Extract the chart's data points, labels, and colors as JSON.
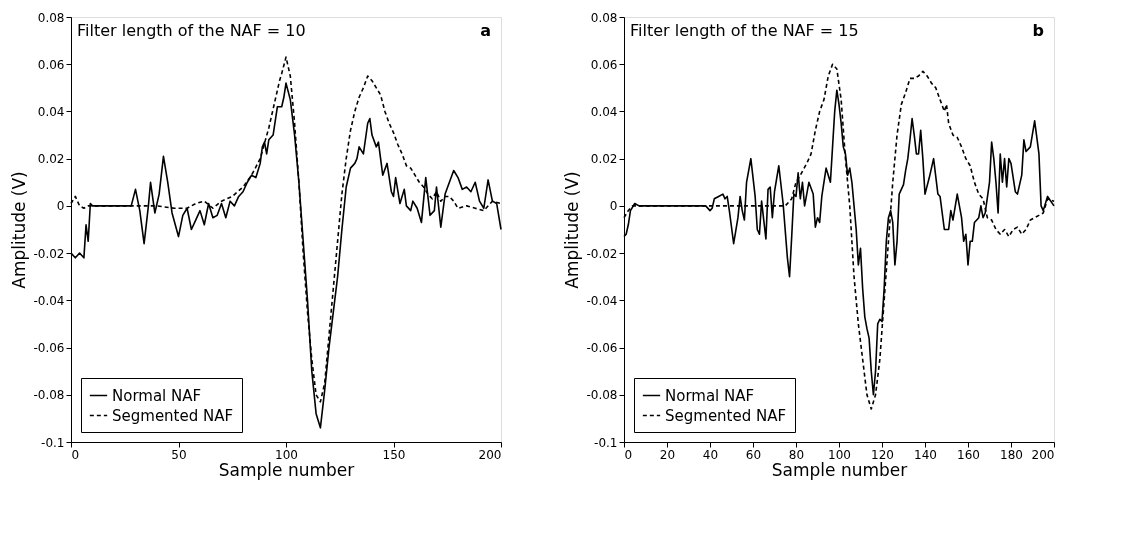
{
  "chart_data": [
    {
      "type": "line",
      "title": "Filter length of the NAF = 10",
      "xlabel": "Sample number",
      "ylabel": "Amplitude (V)",
      "xlim": [
        0,
        200
      ],
      "xticks": [
        0,
        50,
        100,
        150,
        200
      ],
      "ylim": [
        -0.1,
        0.08
      ],
      "yticks": [
        -0.1,
        -0.08,
        -0.06,
        -0.04,
        -0.02,
        0,
        0.02,
        0.04,
        0.06,
        0.08
      ],
      "grid": false,
      "legend": "bottom left",
      "annotations": [
        "a"
      ],
      "series": [
        {
          "name": "Normal NAF",
          "color": "#000000",
          "line_style": "solid",
          "x": [
            0,
            2,
            4,
            6,
            7,
            8,
            9,
            10,
            28,
            30,
            32,
            34,
            36,
            37,
            39,
            41,
            43,
            45,
            47,
            50,
            52,
            54,
            56,
            58,
            60,
            62,
            64,
            66,
            68,
            70,
            72,
            74,
            76,
            78,
            80,
            82,
            84,
            86,
            88,
            89,
            90,
            91,
            92,
            94,
            96,
            98,
            99,
            100,
            102,
            104,
            106,
            108,
            110,
            112,
            114,
            116,
            118,
            120,
            122,
            124,
            126,
            128,
            130,
            132,
            133,
            134,
            136,
            138,
            139,
            140,
            142,
            143,
            144,
            145,
            147,
            149,
            150,
            151,
            153,
            155,
            156,
            158,
            159,
            161,
            163,
            165,
            167,
            169,
            170,
            172,
            174,
            176,
            178,
            180,
            182,
            184,
            186,
            188,
            190,
            192,
            194,
            196,
            198,
            200
          ],
          "values": [
            -0.02,
            -0.022,
            -0.02,
            -0.022,
            -0.008,
            -0.015,
            0.001,
            0,
            0,
            0.007,
            -0.002,
            -0.016,
            0,
            0.01,
            -0.003,
            0.005,
            0.021,
            0.01,
            -0.003,
            -0.013,
            -0.004,
            -0.001,
            -0.01,
            -0.006,
            -0.002,
            -0.008,
            0.001,
            -0.005,
            -0.004,
            0.001,
            -0.005,
            0.002,
            0,
            0.004,
            0.006,
            0.01,
            0.013,
            0.012,
            0.018,
            0.025,
            0.027,
            0.022,
            0.028,
            0.03,
            0.042,
            0.042,
            0.046,
            0.052,
            0.045,
            0.03,
            0.01,
            -0.015,
            -0.04,
            -0.07,
            -0.088,
            -0.094,
            -0.078,
            -0.06,
            -0.045,
            -0.03,
            -0.01,
            0.008,
            0.016,
            0.018,
            0.02,
            0.025,
            0.022,
            0.035,
            0.037,
            0.03,
            0.025,
            0.027,
            0.02,
            0.013,
            0.018,
            0.006,
            0.004,
            0.012,
            0.001,
            0.007,
            0,
            -0.002,
            0.002,
            -0.001,
            -0.007,
            0.012,
            -0.004,
            -0.002,
            0.008,
            -0.009,
            0.005,
            0.01,
            0.015,
            0.012,
            0.007,
            0.008,
            0.006,
            0.01,
            0.002,
            -0.001,
            0.011,
            0.002,
            0.001,
            -0.01
          ]
        },
        {
          "name": "Segmented NAF",
          "color": "#000000",
          "line_style": "dashed",
          "x": [
            0,
            2,
            4,
            6,
            8,
            10,
            30,
            40,
            48,
            54,
            58,
            62,
            66,
            70,
            75,
            80,
            84,
            88,
            92,
            95,
            97,
            98,
            100,
            102,
            104,
            106,
            108,
            110,
            112,
            114,
            116,
            118,
            120,
            122,
            124,
            126,
            128,
            130,
            132,
            134,
            136,
            138,
            140,
            142,
            144,
            146,
            148,
            150,
            152,
            154,
            156,
            158,
            160,
            162,
            164,
            166,
            168,
            170,
            172,
            174,
            176,
            178,
            180,
            184,
            188,
            192,
            196,
            200
          ],
          "values": [
            0.001,
            0.004,
            0,
            -0.001,
            0,
            0,
            0,
            0,
            -0.001,
            -0.001,
            0.001,
            0.002,
            -0.001,
            0.002,
            0.004,
            0.008,
            0.013,
            0.02,
            0.033,
            0.045,
            0.053,
            0.056,
            0.063,
            0.055,
            0.035,
            0.01,
            -0.02,
            -0.045,
            -0.065,
            -0.08,
            -0.083,
            -0.075,
            -0.055,
            -0.035,
            -0.015,
            0.005,
            0.02,
            0.032,
            0.04,
            0.046,
            0.05,
            0.055,
            0.053,
            0.05,
            0.047,
            0.04,
            0.035,
            0.031,
            0.026,
            0.022,
            0.017,
            0.016,
            0.013,
            0.01,
            0.008,
            0.005,
            0.003,
            0.006,
            0.002,
            0.004,
            0.004,
            0.002,
            -0.001,
            0,
            -0.001,
            -0.002,
            0.002,
            0.001
          ]
        }
      ]
    },
    {
      "type": "line",
      "title": "Filter length of the NAF = 15",
      "xlabel": "Sample number",
      "ylabel": "Amplitude (V)",
      "xlim": [
        0,
        200
      ],
      "xticks": [
        0,
        20,
        40,
        60,
        80,
        100,
        120,
        140,
        160,
        180,
        200
      ],
      "ylim": [
        -0.1,
        0.08
      ],
      "yticks": [
        -0.1,
        -0.08,
        -0.06,
        -0.04,
        -0.02,
        0,
        0.02,
        0.04,
        0.06,
        0.08
      ],
      "grid": false,
      "legend": "bottom left",
      "annotations": [
        "b"
      ],
      "series": [
        {
          "name": "Normal NAF",
          "color": "#000000",
          "line_style": "solid",
          "x": [
            0,
            1,
            2,
            3,
            5,
            7,
            38,
            40,
            41,
            42,
            44,
            46,
            47,
            48,
            49,
            51,
            53,
            54,
            55,
            56,
            57,
            59,
            61,
            62,
            63,
            64,
            65,
            66,
            67,
            68,
            69,
            70,
            72,
            74,
            76,
            77,
            78,
            79,
            80,
            81,
            82,
            83,
            84,
            86,
            88,
            89,
            90,
            91,
            92,
            94,
            95,
            96,
            97,
            98,
            99,
            100,
            101,
            102,
            103,
            104,
            105,
            106,
            107,
            108,
            109,
            110,
            111,
            112,
            113,
            114,
            115,
            116,
            117,
            118,
            119,
            120,
            121,
            122,
            123,
            124,
            125,
            126,
            127,
            128,
            130,
            131,
            132,
            133,
            134,
            135,
            136,
            137,
            138,
            139,
            140,
            142,
            144,
            146,
            147,
            149,
            151,
            152,
            153,
            155,
            157,
            158,
            159,
            160,
            161,
            162,
            163,
            165,
            166,
            167,
            168,
            170,
            171,
            172,
            173,
            174,
            175,
            176,
            177,
            178,
            179,
            180,
            182,
            183,
            185,
            186,
            187,
            189,
            191,
            193,
            194,
            195,
            197,
            200
          ],
          "values": [
            -0.013,
            -0.012,
            -0.008,
            -0.002,
            0.001,
            0,
            0,
            -0.002,
            -0.001,
            0.003,
            0.004,
            0.005,
            0.003,
            0.004,
            -0.002,
            -0.016,
            -0.005,
            0.004,
            -0.002,
            -0.006,
            0.01,
            0.02,
            0.004,
            -0.01,
            -0.012,
            0.002,
            -0.006,
            -0.014,
            0.007,
            0.008,
            -0.005,
            0.006,
            0.017,
            0.001,
            -0.022,
            -0.03,
            -0.013,
            0.005,
            0.004,
            0.014,
            0.003,
            0.01,
            0,
            0.01,
            0.005,
            -0.009,
            -0.005,
            -0.007,
            0.004,
            0.016,
            0.013,
            0.01,
            0.025,
            0.04,
            0.049,
            0.043,
            0.035,
            0.025,
            0.022,
            0.013,
            0.016,
            0.01,
            0,
            -0.01,
            -0.025,
            -0.018,
            -0.035,
            -0.047,
            -0.052,
            -0.056,
            -0.07,
            -0.08,
            -0.07,
            -0.05,
            -0.048,
            -0.049,
            -0.035,
            -0.015,
            -0.005,
            -0.002,
            -0.007,
            -0.025,
            -0.015,
            0.005,
            0.009,
            0.015,
            0.02,
            0.028,
            0.037,
            0.03,
            0.022,
            0.022,
            0.032,
            0.02,
            0.005,
            0.012,
            0.02,
            0.005,
            0.004,
            -0.01,
            -0.01,
            -0.002,
            -0.006,
            0.005,
            -0.005,
            -0.015,
            -0.012,
            -0.025,
            -0.015,
            -0.015,
            -0.007,
            -0.005,
            0,
            -0.005,
            -0.003,
            0.01,
            0.027,
            0.02,
            0.01,
            -0.003,
            0.022,
            0.01,
            0.02,
            0.008,
            0.02,
            0.018,
            0.006,
            0.005,
            0.013,
            0.028,
            0.023,
            0.025,
            0.036,
            0.022,
            0,
            -0.002,
            0.004,
            0
          ]
        },
        {
          "name": "Segmented NAF",
          "color": "#000000",
          "line_style": "dashed",
          "x": [
            0,
            2,
            4,
            40,
            46,
            60,
            75,
            78,
            80,
            82,
            85,
            87,
            89,
            91,
            93,
            95,
            97,
            99,
            101,
            103,
            105,
            107,
            109,
            111,
            113,
            115,
            117,
            119,
            121,
            123,
            125,
            127,
            129,
            131,
            133,
            135,
            137,
            139,
            141,
            143,
            145,
            147,
            149,
            150,
            151,
            153,
            155,
            157,
            159,
            161,
            163,
            165,
            167,
            169,
            171,
            173,
            175,
            177,
            179,
            181,
            183,
            185,
            187,
            189,
            191,
            193,
            195,
            197,
            200
          ],
          "values": [
            -0.005,
            -0.002,
            0,
            0,
            0,
            0,
            0,
            0.003,
            0.01,
            0.013,
            0.018,
            0.022,
            0.032,
            0.04,
            0.045,
            0.055,
            0.06,
            0.058,
            0.045,
            0.02,
            0,
            -0.03,
            -0.05,
            -0.065,
            -0.08,
            -0.086,
            -0.08,
            -0.065,
            -0.04,
            -0.015,
            0.01,
            0.03,
            0.043,
            0.048,
            0.054,
            0.054,
            0.055,
            0.057,
            0.055,
            0.052,
            0.05,
            0.045,
            0.04,
            0.043,
            0.035,
            0.03,
            0.029,
            0.025,
            0.02,
            0.017,
            0.01,
            0.005,
            0.003,
            -0.005,
            -0.006,
            -0.01,
            -0.012,
            -0.01,
            -0.013,
            -0.01,
            -0.009,
            -0.012,
            -0.01,
            -0.006,
            -0.005,
            -0.004,
            -0.003,
            0.003,
            0.002
          ]
        }
      ]
    }
  ]
}
